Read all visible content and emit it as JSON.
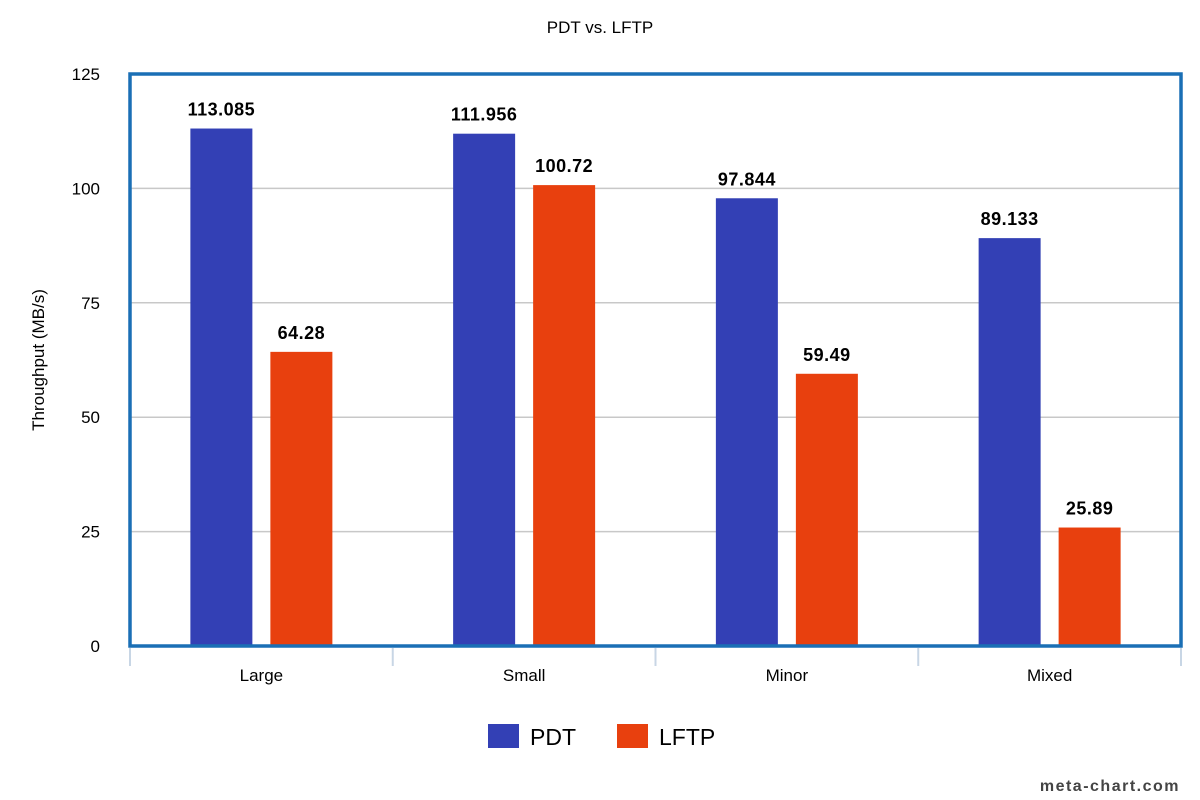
{
  "chart_data": {
    "type": "bar",
    "title": "PDT vs. LFTP",
    "xlabel": "",
    "ylabel": "Throughput (MB/s)",
    "categories": [
      "Large",
      "Small",
      "Minor",
      "Mixed"
    ],
    "series": [
      {
        "name": "PDT",
        "color": "#3340b5",
        "values": [
          113.085,
          111.956,
          97.844,
          89.133
        ],
        "labels": [
          "113.085",
          "111.956",
          "97.844",
          "89.133"
        ]
      },
      {
        "name": "LFTP",
        "color": "#e8400e",
        "values": [
          64.28,
          100.72,
          59.49,
          25.89
        ],
        "labels": [
          "64.28",
          "100.72",
          "59.49",
          "25.89"
        ]
      }
    ],
    "ylim": [
      0,
      125
    ],
    "yticks": [
      0,
      25,
      50,
      75,
      100,
      125
    ],
    "grid": true,
    "legend": "bottom-center",
    "frame_color": "#1a6fb5"
  },
  "watermark": "meta-chart.com"
}
